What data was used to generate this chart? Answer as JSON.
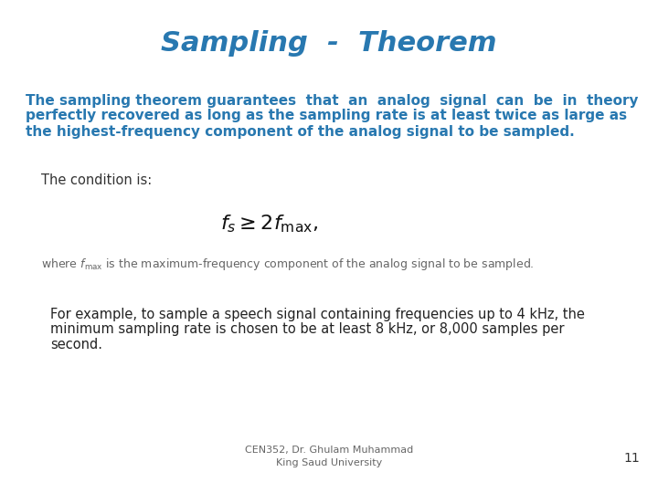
{
  "title": "Sampling  -  Theorem",
  "title_color": "#2878B0",
  "title_fontsize": 22,
  "background_color": "#FFFFFF",
  "bold_line1": "The sampling theorem guarantees  that  an  analog  signal  can  be  in  theory",
  "bold_line2": "perfectly recovered as long as the sampling rate is at least twice as large as",
  "bold_line3": "the highest-frequency component of the analog signal to be sampled.",
  "bold_text_color": "#2878B0",
  "bold_text_fontsize": 11.0,
  "condition_label": "The condition is:",
  "condition_label_color": "#333333",
  "condition_label_fontsize": 10.5,
  "formula": "$f_s\\geq 2f_{\\mathrm{max}},$",
  "formula_fontsize": 16,
  "formula_color": "#111111",
  "where_text": "where $f_{\\mathrm{max}}$ is the maximum-frequency component of the analog signal to be sampled.",
  "where_text_color": "#666666",
  "where_text_fontsize": 9.0,
  "example_line1": "For example, to sample a speech signal containing frequencies up to 4 kHz, the",
  "example_line2": "minimum sampling rate is chosen to be at least 8 kHz, or 8,000 samples per",
  "example_line3": "second.",
  "example_text_color": "#222222",
  "example_text_fontsize": 10.5,
  "footer_text": "CEN352, Dr. Ghulam Muhammad\nKing Saud University",
  "footer_color": "#666666",
  "footer_fontsize": 8,
  "page_number": "11",
  "page_number_color": "#333333",
  "page_number_fontsize": 10
}
